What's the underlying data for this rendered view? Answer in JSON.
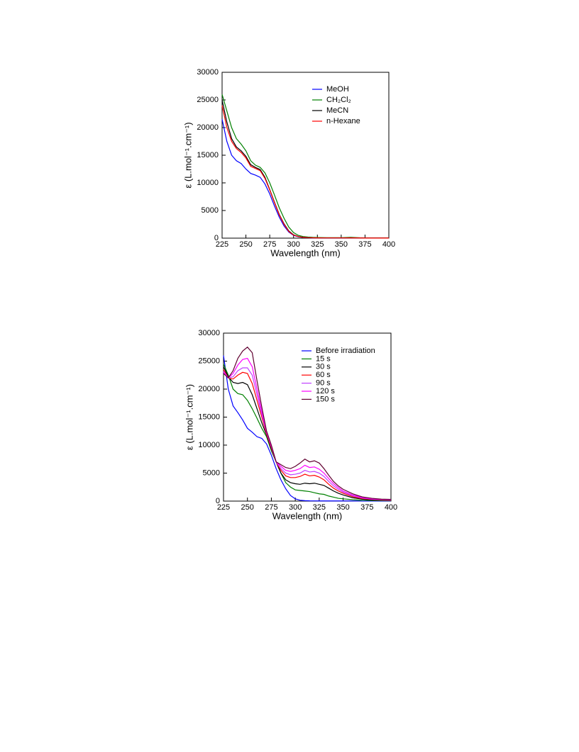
{
  "chart_data": [
    {
      "type": "line",
      "x_label": "Wavelength (nm)",
      "y_label": "ε (L.mol⁻¹.cm⁻¹)",
      "xlim": [
        225,
        400
      ],
      "ylim": [
        0,
        30000
      ],
      "xticks": [
        225,
        250,
        275,
        300,
        325,
        350,
        375,
        400
      ],
      "yticks": [
        0,
        5000,
        10000,
        15000,
        20000,
        25000,
        30000
      ],
      "legend": "upper right",
      "x": [
        225,
        230,
        235,
        240,
        245,
        250,
        255,
        260,
        265,
        270,
        275,
        280,
        285,
        290,
        295,
        300,
        305,
        310,
        315,
        320,
        325,
        330,
        335,
        340,
        345,
        350,
        360,
        370,
        380,
        390,
        400
      ],
      "series": [
        {
          "name": "MeOH",
          "color": "#0000ff",
          "values": [
            21500,
            17500,
            15000,
            14000,
            13500,
            12500,
            11700,
            11400,
            11000,
            9800,
            8000,
            5800,
            3800,
            2200,
            1100,
            500,
            250,
            120,
            80,
            50,
            40,
            30,
            30,
            30,
            30,
            30,
            40,
            20,
            10,
            10,
            10
          ]
        },
        {
          "name": "CH₂Cl₂",
          "color": "#008000",
          "values": [
            26000,
            23000,
            20000,
            18000,
            17000,
            15800,
            14000,
            13200,
            12800,
            11800,
            10000,
            7800,
            5500,
            3600,
            2000,
            1000,
            500,
            300,
            200,
            150,
            120,
            100,
            90,
            80,
            80,
            80,
            150,
            60,
            40,
            30,
            30
          ]
        },
        {
          "name": "MeCN",
          "color": "#000000",
          "values": [
            25000,
            21000,
            18000,
            16500,
            15800,
            14800,
            13300,
            12800,
            12400,
            11000,
            8800,
            6500,
            4300,
            2600,
            1300,
            600,
            300,
            150,
            100,
            70,
            50,
            40,
            40,
            40,
            40,
            40,
            60,
            30,
            20,
            20,
            20
          ]
        },
        {
          "name": "n-Hexane",
          "color": "#ff0000",
          "values": [
            24000,
            20000,
            17500,
            16200,
            15500,
            14500,
            13000,
            12600,
            12200,
            10800,
            8700,
            6400,
            4200,
            2500,
            1200,
            550,
            280,
            140,
            90,
            60,
            50,
            40,
            40,
            40,
            40,
            40,
            50,
            30,
            20,
            20,
            20
          ]
        }
      ]
    },
    {
      "type": "line",
      "x_label": "Wavelength (nm)",
      "y_label": "ε (L.mol⁻¹.cm⁻¹)",
      "xlim": [
        225,
        400
      ],
      "ylim": [
        0,
        30000
      ],
      "xticks": [
        225,
        250,
        275,
        300,
        325,
        350,
        375,
        400
      ],
      "yticks": [
        0,
        5000,
        10000,
        15000,
        20000,
        25000,
        30000
      ],
      "legend": "upper right",
      "x": [
        225,
        230,
        235,
        240,
        245,
        250,
        255,
        260,
        265,
        270,
        275,
        280,
        285,
        290,
        295,
        300,
        305,
        310,
        315,
        320,
        325,
        330,
        335,
        340,
        345,
        350,
        360,
        370,
        380,
        390,
        400
      ],
      "series": [
        {
          "name": "Before irradiation",
          "color": "#0000ff",
          "values": [
            26000,
            20000,
            17000,
            15800,
            14500,
            13000,
            12300,
            11500,
            11200,
            10200,
            8200,
            5800,
            3800,
            2200,
            1000,
            400,
            150,
            80,
            50,
            40,
            30,
            30,
            30,
            30,
            30,
            30,
            30,
            20,
            20,
            20,
            20
          ]
        },
        {
          "name": "15 s",
          "color": "#008000",
          "values": [
            24500,
            22500,
            20000,
            19200,
            19000,
            18000,
            16500,
            14800,
            13000,
            11500,
            9000,
            7000,
            5000,
            3300,
            2500,
            2000,
            1900,
            1800,
            1700,
            1500,
            1300,
            1200,
            900,
            700,
            500,
            400,
            250,
            150,
            100,
            80,
            60
          ]
        },
        {
          "name": "30 s",
          "color": "#000000",
          "values": [
            24000,
            22200,
            21200,
            21000,
            21200,
            20800,
            19000,
            16500,
            14000,
            11800,
            9300,
            7000,
            5000,
            3800,
            3300,
            3100,
            3000,
            3200,
            3100,
            3200,
            3000,
            2800,
            2300,
            1800,
            1400,
            1100,
            600,
            350,
            200,
            150,
            100
          ]
        },
        {
          "name": "60 s",
          "color": "#ff0000",
          "values": [
            23500,
            22000,
            21800,
            22500,
            23000,
            22800,
            21000,
            18000,
            15000,
            12000,
            9500,
            7000,
            5500,
            4500,
            4200,
            4200,
            4400,
            4800,
            4500,
            4600,
            4300,
            3800,
            3000,
            2300,
            1800,
            1400,
            800,
            450,
            300,
            200,
            150
          ]
        },
        {
          "name": "90 s",
          "color": "#c040ff",
          "values": [
            23200,
            22000,
            22200,
            23300,
            23800,
            23800,
            22500,
            19000,
            15500,
            12200,
            9700,
            7000,
            5800,
            5000,
            4700,
            4800,
            5000,
            5500,
            5200,
            5300,
            5000,
            4400,
            3500,
            2700,
            2100,
            1600,
            950,
            550,
            350,
            250,
            200
          ]
        },
        {
          "name": "120 s",
          "color": "#ff00ff",
          "values": [
            23000,
            22000,
            22800,
            24300,
            25300,
            25500,
            24000,
            20000,
            16000,
            12300,
            9800,
            7000,
            6200,
            5500,
            5300,
            5500,
            5800,
            6400,
            6000,
            6100,
            5700,
            5000,
            4000,
            3100,
            2400,
            1800,
            1100,
            650,
            400,
            300,
            250
          ]
        },
        {
          "name": "150 s",
          "color": "#600030",
          "values": [
            22800,
            22000,
            23300,
            25500,
            26800,
            27500,
            26500,
            21500,
            16800,
            12500,
            10000,
            7000,
            6500,
            6000,
            5800,
            6200,
            6800,
            7500,
            7000,
            7200,
            6800,
            5800,
            4600,
            3500,
            2700,
            2100,
            1300,
            750,
            500,
            350,
            300
          ]
        }
      ]
    }
  ]
}
